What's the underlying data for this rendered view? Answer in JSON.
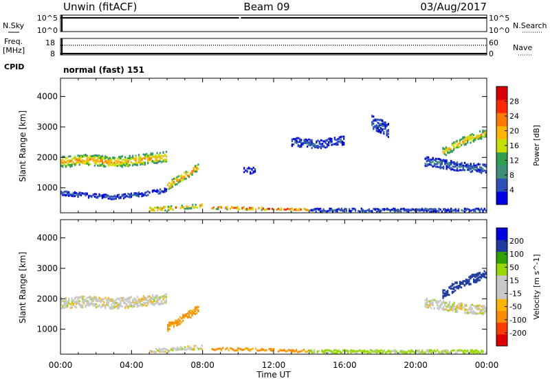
{
  "header": {
    "station": "Unwin (fitACF)",
    "beam": "Beam 09",
    "date": "03/Aug/2017"
  },
  "strips": {
    "nsky": {
      "label": "N.Sky",
      "tick_top": "10^5",
      "tick_bottom": "10^0",
      "right_tick_top": "10^5",
      "right_tick_bottom": "10^0",
      "right_label": "N.Search",
      "gap_hours": [
        10.05,
        10.15
      ]
    },
    "freq": {
      "label_top": "Freq.",
      "label_bottom": "[MHz]",
      "tick_top": "18",
      "tick_bottom": "8",
      "right_tick_top": "60",
      "right_tick_bottom": "0",
      "right_label": "Nave"
    },
    "cpid": {
      "label": "CPID",
      "text": "normal (fast) 151"
    }
  },
  "colors": {
    "power": [
      "#0000e6",
      "#2c50b8",
      "#3f8f78",
      "#2fa050",
      "#c8e000",
      "#ffb400",
      "#ff7800",
      "#ff2800",
      "#d80000"
    ],
    "velocity": [
      "#e00000",
      "#ff3c00",
      "#ff8c00",
      "#ffb400",
      "#c8c8c8",
      "#c8c8c8",
      "#96d800",
      "#2ea000",
      "#1e3ca0",
      "#0000e0"
    ],
    "white": "#ffffff"
  },
  "chart_data": [
    {
      "type": "heatmap",
      "panel": "power",
      "xlabel": "",
      "ylabel": "Slant Range [km]",
      "xlim": [
        0,
        24
      ],
      "ylim": [
        180,
        4600
      ],
      "yticks": [
        1000,
        2000,
        3000,
        4000
      ],
      "colorbar": {
        "label": "Power [dB]",
        "ticks": [
          4,
          8,
          12,
          16,
          20,
          24,
          28
        ],
        "range": [
          0,
          32
        ]
      },
      "features": [
        {
          "t": [
            0,
            6
          ],
          "r_center": [
            1880,
            1950,
            1870,
            1950,
            2050
          ],
          "width_km": 350,
          "power_db": 22
        },
        {
          "t": [
            0,
            6
          ],
          "r_center": [
            860,
            780,
            720,
            820,
            960
          ],
          "width_km": 140,
          "power_db": 6
        },
        {
          "t": [
            6,
            7.8
          ],
          "r_center": [
            1100,
            1300,
            1500,
            1750
          ],
          "width_km": 250,
          "power_db": 24
        },
        {
          "t": [
            5,
            8
          ],
          "r_center": [
            320,
            380,
            450
          ],
          "width_km": 130,
          "power_db": 24
        },
        {
          "t": [
            8.5,
            14
          ],
          "r_center": [
            380,
            350,
            310
          ],
          "width_km": 90,
          "power_db": 28
        },
        {
          "t": [
            14,
            24
          ],
          "r_center": [
            300,
            300
          ],
          "width_km": 100,
          "power_db": 6
        },
        {
          "t": [
            10.3,
            11
          ],
          "r_center": [
            1600
          ],
          "width_km": 200,
          "power_db": 5
        },
        {
          "t": [
            13,
            16
          ],
          "r_center": [
            2550,
            2450,
            2600
          ],
          "width_km": 280,
          "power_db": 6
        },
        {
          "t": [
            17.5,
            18.5
          ],
          "r_center": [
            3200,
            2900
          ],
          "width_km": 450,
          "power_db": 6
        },
        {
          "t": [
            20.5,
            24
          ],
          "r_center": [
            1900,
            1800,
            1700,
            1650
          ],
          "width_km": 300,
          "power_db": 7
        },
        {
          "t": [
            21.5,
            24
          ],
          "r_center": [
            2200,
            2600,
            2850
          ],
          "width_km": 300,
          "power_db": 20
        }
      ]
    },
    {
      "type": "heatmap",
      "panel": "velocity",
      "xlabel": "Time UT",
      "ylabel": "Slant Range [km]",
      "xlim": [
        0,
        24
      ],
      "ylim": [
        180,
        4600
      ],
      "yticks": [
        1000,
        2000,
        3000,
        4000
      ],
      "xticks": [
        "00:00",
        "04:00",
        "08:00",
        "12:00",
        "16:00",
        "20:00",
        "00:00"
      ],
      "colorbar": {
        "label": "Velocity [m s^-1]",
        "ticks": [
          200,
          100,
          50,
          15,
          -15,
          -50,
          -100,
          -200
        ],
        "range": [
          -250,
          250
        ]
      },
      "features": [
        {
          "t": [
            0,
            6
          ],
          "r_center": [
            1880,
            1950,
            1870,
            1950,
            2050
          ],
          "width_km": 350,
          "velocity_ms": 0
        },
        {
          "t": [
            6,
            7.8
          ],
          "r_center": [
            1100,
            1300,
            1500,
            1750
          ],
          "width_km": 250,
          "velocity_ms": -60
        },
        {
          "t": [
            5,
            8
          ],
          "r_center": [
            320,
            380,
            450
          ],
          "width_km": 130,
          "velocity_ms": 0
        },
        {
          "t": [
            8.5,
            14
          ],
          "r_center": [
            380,
            350,
            310
          ],
          "width_km": 90,
          "velocity_ms": -60
        },
        {
          "t": [
            14,
            24
          ],
          "r_center": [
            300,
            300
          ],
          "width_km": 100,
          "velocity_ms": 25
        },
        {
          "t": [
            20.5,
            24
          ],
          "r_center": [
            1900,
            1800,
            1700,
            1650
          ],
          "width_km": 300,
          "velocity_ms": 0
        },
        {
          "t": [
            21.5,
            24
          ],
          "r_center": [
            2200,
            2600,
            2850
          ],
          "width_km": 300,
          "velocity_ms": 180
        }
      ]
    }
  ]
}
